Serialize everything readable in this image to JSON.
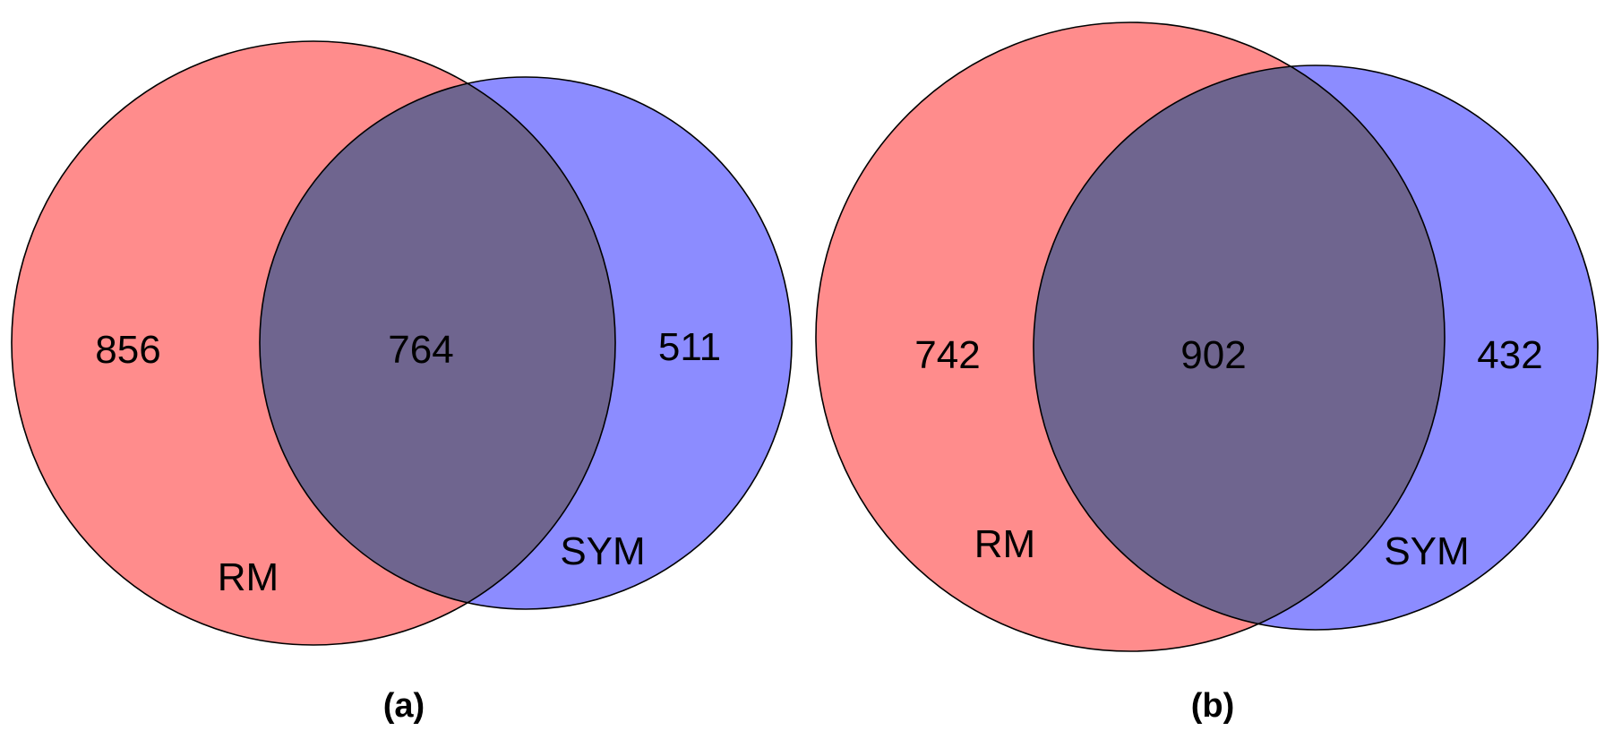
{
  "colors": {
    "rm_only": "#ff8c8c",
    "sym_only": "#8c8cff",
    "overlap": "#6f658f",
    "outline": "#000000",
    "background": "#ffffff"
  },
  "panels": [
    {
      "caption": "(a)",
      "sets": [
        {
          "label": "RM",
          "exclusive_count": "856"
        },
        {
          "label": "SYM",
          "exclusive_count": "511"
        }
      ],
      "intersection_count": "764"
    },
    {
      "caption": "(b)",
      "sets": [
        {
          "label": "RM",
          "exclusive_count": "742"
        },
        {
          "label": "SYM",
          "exclusive_count": "432"
        }
      ],
      "intersection_count": "902"
    }
  ]
}
